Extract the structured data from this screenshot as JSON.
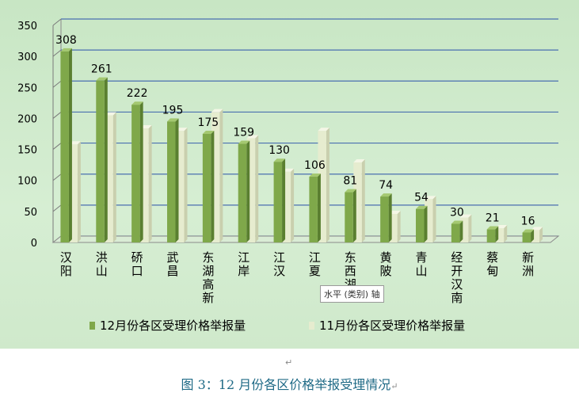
{
  "chart_data": {
    "type": "bar",
    "categories": [
      "汉阳",
      "洪山",
      "硚口",
      "武昌",
      "东湖高新",
      "江岸",
      "江汉",
      "江夏",
      "东西湖",
      "黄陂",
      "青山",
      "经开汉南",
      "蔡甸",
      "新洲"
    ],
    "series": [
      {
        "name": "12月份各区受理价格举报量",
        "values": [
          308,
          261,
          222,
          195,
          175,
          159,
          130,
          106,
          81,
          74,
          54,
          30,
          21,
          16
        ],
        "color": "#7fa84a"
      },
      {
        "name": "11月份各区受理价格举报量",
        "values": [
          158,
          205,
          184,
          180,
          210,
          168,
          114,
          180,
          129,
          46,
          70,
          40,
          23,
          20
        ],
        "color": "#e6eccf"
      }
    ],
    "data_labels": [
      "308",
      "261",
      "222",
      "195",
      "175",
      "159",
      "130",
      "106",
      "81",
      "74",
      "54",
      "30",
      "21",
      "16"
    ],
    "y_ticks": [
      "0",
      "50",
      "100",
      "150",
      "200",
      "250",
      "300",
      "350"
    ],
    "ylim": [
      0,
      350
    ],
    "grid": true,
    "legend_position": "bottom"
  },
  "tooltip_text": "水平 (类别) 轴",
  "caption": "图 3：12 月份各区价格举报受理情况",
  "caption_mark": "↵",
  "para_mark": "↵"
}
